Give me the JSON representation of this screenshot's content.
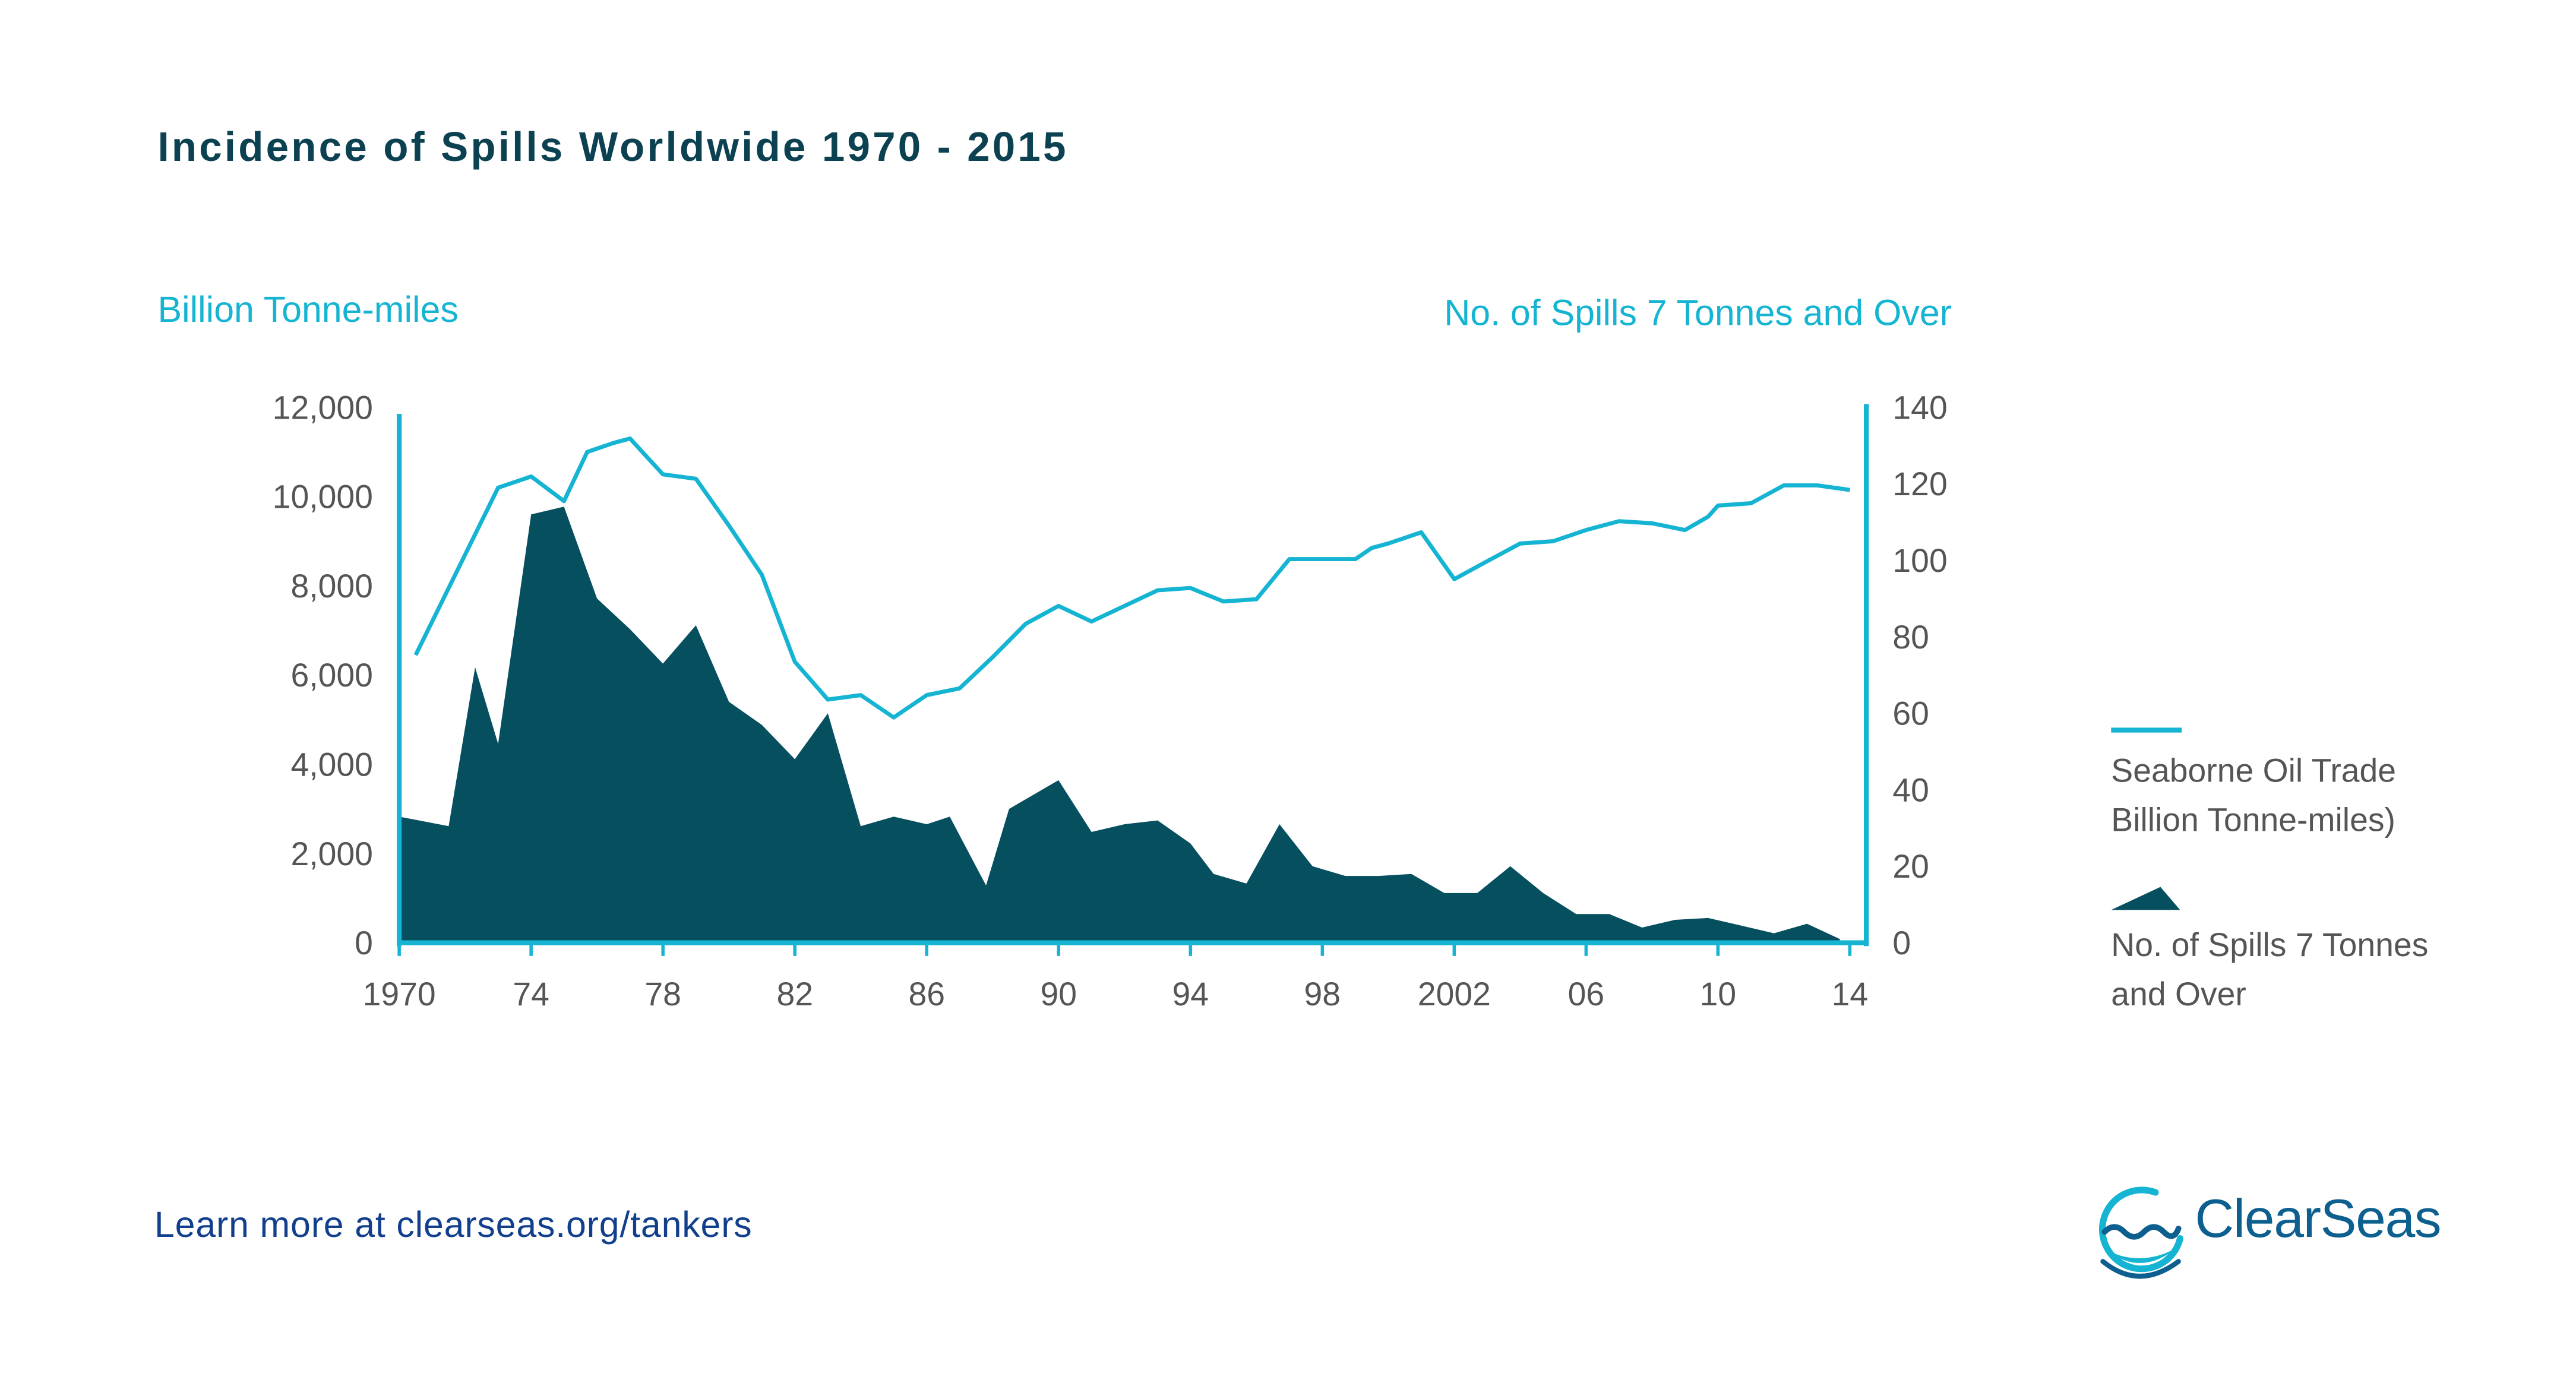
{
  "title": "Incidence of Spills Worldwide 1970 - 2015",
  "footer_text": "Learn more at clearseas.org/tankers",
  "logo_text": "ClearSeas",
  "legend": {
    "line_label": "Seaborne Oil Trade Billion Tonne-miles)",
    "area_label": "No. of Spills 7 Tonnes and Over"
  },
  "colors": {
    "line": "#14b4d2",
    "area": "#064f5f",
    "title": "#0b4150",
    "footer": "#123f8c",
    "tick_text": "#555555"
  },
  "chart_data": {
    "type": "line",
    "title": "Incidence of Spills Worldwide 1970 - 2015",
    "ylabel_left": "Billion Tonne-miles",
    "ylabel_right": "No. of Spills 7 Tonnes and Over",
    "xlim": [
      1970,
      2014.5
    ],
    "ylim_left": [
      0,
      12000
    ],
    "ylim_right": [
      0,
      140
    ],
    "x_ticks": [
      1970,
      1974,
      1978,
      1982,
      1986,
      1990,
      1994,
      1998,
      2002,
      2006,
      2010,
      2014
    ],
    "x_tick_labels": [
      "1970",
      "74",
      "78",
      "82",
      "86",
      "90",
      "94",
      "98",
      "2002",
      "06",
      "10",
      "14"
    ],
    "y_ticks_left": [
      0,
      2000,
      4000,
      6000,
      8000,
      10000,
      12000
    ],
    "y_tick_labels_left": [
      "0",
      "2,000",
      "4,000",
      "6,000",
      "8,000",
      "10,000",
      "12,000"
    ],
    "y_ticks_right": [
      0,
      20,
      40,
      60,
      80,
      100,
      120,
      140
    ],
    "y_tick_labels_right": [
      "0",
      "20",
      "40",
      "60",
      "80",
      "100",
      "120",
      "140"
    ],
    "grid": false,
    "legend_position": "right",
    "series": [
      {
        "name": "Seaborne Oil Trade Billion Tonne-miles)",
        "kind": "line",
        "axis": "left",
        "x": [
          1970.5,
          1973,
          1974,
          1975,
          1975.7,
          1976.5,
          1977,
          1978,
          1979,
          1980,
          1981,
          1982,
          1983,
          1984,
          1985,
          1986,
          1987,
          1988,
          1989,
          1990,
          1991,
          1992,
          1993,
          1994,
          1995,
          1996,
          1997,
          1998,
          1999,
          1999.5,
          2000,
          2001,
          2002,
          2003,
          2004,
          2005,
          2006,
          2007,
          2008,
          2009,
          2009.7,
          2010,
          2011,
          2012,
          2013,
          2014
        ],
        "values": [
          6450,
          10200,
          10450,
          9900,
          11000,
          11200,
          11300,
          10500,
          10400,
          9350,
          8250,
          6300,
          5450,
          5550,
          5050,
          5550,
          5700,
          6400,
          7150,
          7550,
          7200,
          7550,
          7900,
          7950,
          7650,
          7700,
          8600,
          8600,
          8600,
          8850,
          8950,
          9200,
          8150,
          8550,
          8950,
          9000,
          9250,
          9450,
          9400,
          9250,
          9550,
          9800,
          9850,
          10250,
          10250,
          10150
        ]
      },
      {
        "name": "No. of Spills 7 Tonnes and Over",
        "kind": "area",
        "axis": "right",
        "x": [
          1970,
          1971.5,
          1972.3,
          1973,
          1974,
          1975,
          1976,
          1977,
          1978,
          1979,
          1980,
          1981,
          1982,
          1983,
          1984,
          1985,
          1986,
          1986.7,
          1987.8,
          1988.5,
          1990,
          1991,
          1992,
          1993,
          1994,
          1994.7,
          1995.7,
          1996.7,
          1997.7,
          1998.7,
          1999.7,
          2000.7,
          2001.7,
          2002.7,
          2003.7,
          2004.7,
          2005.7,
          2006.7,
          2007.7,
          2008.7,
          2009.7,
          2010.7,
          2011.7,
          2012.7,
          2013.7
        ],
        "values": [
          33,
          30.5,
          72,
          52,
          112,
          114,
          90,
          82,
          73,
          83,
          63,
          57,
          48,
          60,
          30.5,
          33,
          31,
          33,
          15,
          35,
          42.5,
          29,
          31,
          32,
          26,
          18,
          15.5,
          31,
          20,
          17.5,
          17.5,
          18,
          13,
          13,
          20,
          13,
          7.5,
          7.5,
          4,
          6,
          6.5,
          4.5,
          2.5,
          5,
          1
        ]
      }
    ]
  }
}
